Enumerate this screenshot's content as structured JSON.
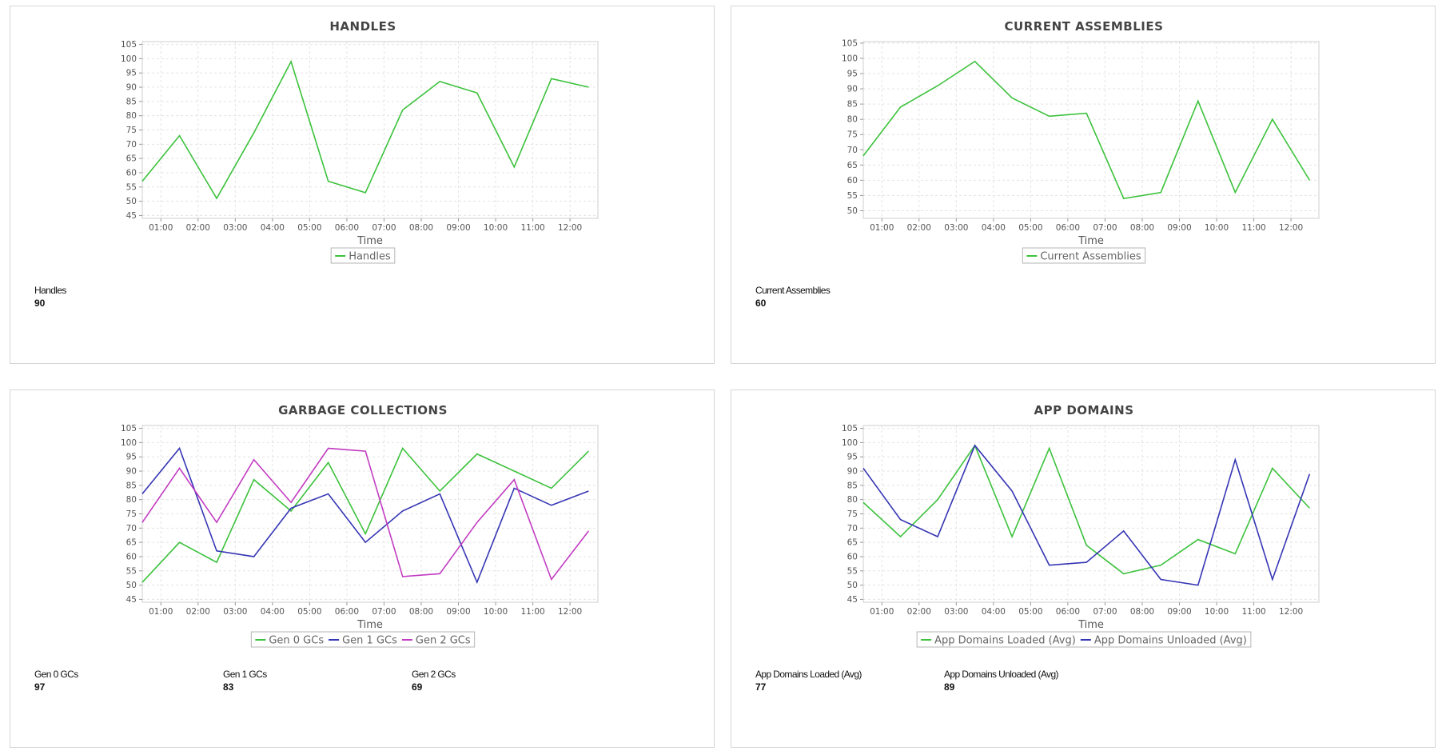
{
  "colors": {
    "green": "#3cc23c",
    "blue": "#3535b5",
    "magenta": "#c23cc2",
    "grid": "#e4e4e4",
    "frame": "#cfcfcf"
  },
  "panels": [
    {
      "stats": [
        {
          "label": "Handles",
          "value": "90"
        }
      ]
    },
    {
      "stats": [
        {
          "label": "Current Assemblies",
          "value": "60"
        }
      ]
    },
    {
      "stats": [
        {
          "label": "Gen 0 GCs",
          "value": "97"
        },
        {
          "label": "Gen 1 GCs",
          "value": "83"
        },
        {
          "label": "Gen 2 GCs",
          "value": "69"
        }
      ]
    },
    {
      "stats": [
        {
          "label": "App Domains Loaded (Avg)",
          "value": "77"
        },
        {
          "label": "App Domains Unloaded (Avg)",
          "value": "89"
        }
      ]
    }
  ],
  "chart_data": [
    {
      "type": "line",
      "title": "HANDLES",
      "xlabel": "Time",
      "ylabel": "",
      "ylim": [
        44,
        106
      ],
      "yticks": [
        45,
        50,
        55,
        60,
        65,
        70,
        75,
        80,
        85,
        90,
        95,
        100,
        105
      ],
      "xlim": [
        0.5,
        12.75
      ],
      "xticks": [
        "01:00",
        "02:00",
        "03:00",
        "04:00",
        "05:00",
        "06:00",
        "07:00",
        "08:00",
        "09:00",
        "10:00",
        "11:00",
        "12:00"
      ],
      "x": [
        0.5,
        1.5,
        2.5,
        3.5,
        4.5,
        5.5,
        6.5,
        7.5,
        8.5,
        9.5,
        10.5,
        11.5,
        12.5
      ],
      "grid": true,
      "legend": "bottom-center",
      "series": [
        {
          "name": "Handles",
          "color": "green",
          "values": [
            57,
            73,
            51,
            74,
            99,
            57,
            53,
            82,
            92,
            88,
            62,
            93,
            90
          ]
        }
      ]
    },
    {
      "type": "line",
      "title": "CURRENT ASSEMBLIES",
      "xlabel": "Time",
      "ylabel": "",
      "ylim": [
        47.5,
        105.5
      ],
      "yticks": [
        50,
        55,
        60,
        65,
        70,
        75,
        80,
        85,
        90,
        95,
        100,
        105
      ],
      "xlim": [
        0.5,
        12.75
      ],
      "xticks": [
        "01:00",
        "02:00",
        "03:00",
        "04:00",
        "05:00",
        "06:00",
        "07:00",
        "08:00",
        "09:00",
        "10:00",
        "11:00",
        "12:00"
      ],
      "x": [
        0.5,
        1.5,
        2.5,
        3.5,
        4.5,
        5.5,
        6.5,
        7.5,
        8.5,
        9.5,
        10.5,
        11.5,
        12.5
      ],
      "grid": true,
      "legend": "bottom-center",
      "series": [
        {
          "name": "Current Assemblies",
          "color": "green",
          "values": [
            68,
            84,
            91,
            99,
            87,
            81,
            82,
            54,
            56,
            86,
            56,
            80,
            60
          ]
        }
      ]
    },
    {
      "type": "line",
      "title": "GARBAGE COLLECTIONS",
      "xlabel": "Time",
      "ylabel": "",
      "ylim": [
        44,
        106
      ],
      "yticks": [
        45,
        50,
        55,
        60,
        65,
        70,
        75,
        80,
        85,
        90,
        95,
        100,
        105
      ],
      "xlim": [
        0.5,
        12.75
      ],
      "xticks": [
        "01:00",
        "02:00",
        "03:00",
        "04:00",
        "05:00",
        "06:00",
        "07:00",
        "08:00",
        "09:00",
        "10:00",
        "11:00",
        "12:00"
      ],
      "x": [
        0.5,
        1.5,
        2.5,
        3.5,
        4.5,
        5.5,
        6.5,
        7.5,
        8.5,
        9.5,
        10.5,
        11.5,
        12.5
      ],
      "grid": true,
      "legend": "bottom-center",
      "series": [
        {
          "name": "Gen 0 GCs",
          "color": "green",
          "values": [
            51,
            65,
            58,
            87,
            76,
            93,
            68,
            98,
            83,
            96,
            90,
            84,
            97
          ]
        },
        {
          "name": "Gen 1 GCs",
          "color": "blue",
          "values": [
            82,
            98,
            62,
            60,
            77,
            82,
            65,
            76,
            82,
            51,
            84,
            78,
            83
          ]
        },
        {
          "name": "Gen 2 GCs",
          "color": "magenta",
          "values": [
            72,
            91,
            72,
            94,
            79,
            98,
            97,
            53,
            54,
            72,
            87,
            52,
            69
          ]
        }
      ]
    },
    {
      "type": "line",
      "title": "APP DOMAINS",
      "xlabel": "Time",
      "ylabel": "",
      "ylim": [
        44,
        106
      ],
      "yticks": [
        45,
        50,
        55,
        60,
        65,
        70,
        75,
        80,
        85,
        90,
        95,
        100,
        105
      ],
      "xlim": [
        0.5,
        12.75
      ],
      "xticks": [
        "01:00",
        "02:00",
        "03:00",
        "04:00",
        "05:00",
        "06:00",
        "07:00",
        "08:00",
        "09:00",
        "10:00",
        "11:00",
        "12:00"
      ],
      "x": [
        0.5,
        1.5,
        2.5,
        3.5,
        4.5,
        5.5,
        6.5,
        7.5,
        8.5,
        9.5,
        10.5,
        11.5,
        12.5
      ],
      "grid": true,
      "legend": "bottom-center",
      "series": [
        {
          "name": "App Domains Loaded (Avg)",
          "color": "green",
          "values": [
            79,
            67,
            80,
            99,
            67,
            98,
            64,
            54,
            57,
            66,
            61,
            91,
            77
          ]
        },
        {
          "name": "App Domains Unloaded (Avg)",
          "color": "blue",
          "values": [
            91,
            73,
            67,
            99,
            83,
            57,
            58,
            69,
            52,
            50,
            94,
            52,
            89
          ]
        }
      ]
    }
  ]
}
